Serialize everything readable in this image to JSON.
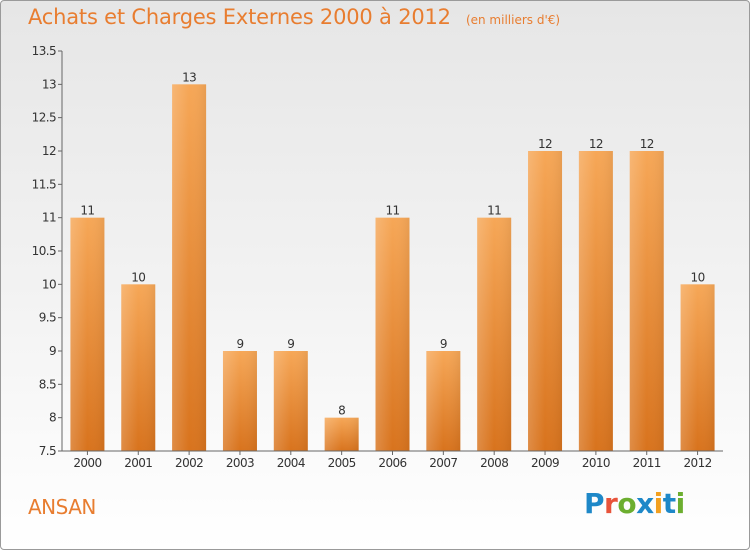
{
  "header": {
    "title": "Achats et Charges Externes 2000 à 2012",
    "unit": "(en milliers d'€)"
  },
  "footer": {
    "commune": "ANSAN",
    "logo_text": "Proxiti"
  },
  "colors": {
    "title": "#e87d30",
    "bar_top": "#f6a757",
    "bar_bottom": "#d8731d",
    "axis": "#666666"
  },
  "chart_data": {
    "type": "bar",
    "title": "Achats et Charges Externes 2000 à 2012",
    "xlabel": "",
    "ylabel": "",
    "categories": [
      "2000",
      "2001",
      "2002",
      "2003",
      "2004",
      "2005",
      "2006",
      "2007",
      "2008",
      "2009",
      "2010",
      "2011",
      "2012"
    ],
    "values": [
      11,
      10,
      13,
      9,
      9,
      8,
      11,
      9,
      11,
      12,
      12,
      12,
      10
    ],
    "ylim": [
      7.5,
      13.5
    ],
    "yticks": [
      7.5,
      8,
      8.5,
      9,
      9.5,
      10,
      10.5,
      11,
      11.5,
      12,
      12.5,
      13,
      13.5
    ],
    "grid": false,
    "legend": "none"
  }
}
